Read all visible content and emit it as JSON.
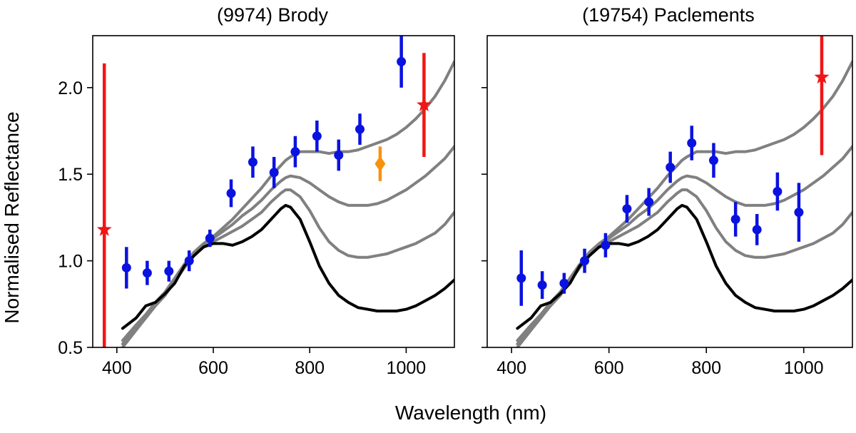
{
  "figure": {
    "xlabel": "Wavelength (nm)",
    "ylabel": "Normalised Reflectance"
  },
  "colors": {
    "blue": "#0a12e0",
    "red": "#f01616",
    "orange": "#f7920e",
    "black_model": "#000000",
    "grey_model": "#808080"
  },
  "chart_data": [
    {
      "type": "scatter",
      "title": "(9974) Brody",
      "xlabel": "Wavelength (nm)",
      "ylabel": "Normalised Reflectance",
      "xlim": [
        350,
        1100
      ],
      "ylim": [
        0.5,
        2.3
      ],
      "xticks": [
        400,
        600,
        800,
        1000
      ],
      "yticks": [
        0.5,
        1.0,
        1.5,
        2.0
      ],
      "grid": false,
      "series": [
        {
          "marker": "circle",
          "color": "blue",
          "points": [
            {
              "x": 420,
              "y": 0.96,
              "err": 0.12
            },
            {
              "x": 463,
              "y": 0.93,
              "err": 0.07
            },
            {
              "x": 508,
              "y": 0.94,
              "err": 0.06
            },
            {
              "x": 550,
              "y": 1.0,
              "err": 0.06
            },
            {
              "x": 593,
              "y": 1.13,
              "err": 0.05
            },
            {
              "x": 637,
              "y": 1.39,
              "err": 0.08
            },
            {
              "x": 682,
              "y": 1.57,
              "err": 0.09
            },
            {
              "x": 726,
              "y": 1.51,
              "err": 0.09
            },
            {
              "x": 770,
              "y": 1.63,
              "err": 0.09
            },
            {
              "x": 815,
              "y": 1.72,
              "err": 0.09
            },
            {
              "x": 860,
              "y": 1.61,
              "err": 0.09
            },
            {
              "x": 904,
              "y": 1.76,
              "err": 0.09
            },
            {
              "x": 990,
              "y": 2.15,
              "err": 0.15
            }
          ]
        },
        {
          "marker": "star",
          "color": "red",
          "points": [
            {
              "x": 374,
              "y": 1.18,
              "err_low": 0.78,
              "err_high": 0.96
            },
            {
              "x": 1037,
              "y": 1.9,
              "err": 0.3
            }
          ]
        },
        {
          "marker": "diamond",
          "color": "orange",
          "points": [
            {
              "x": 946,
              "y": 1.56,
              "err": 0.1
            }
          ]
        }
      ],
      "model_curves": [
        {
          "color": "black_model",
          "x": [
            412,
            440,
            460,
            480,
            500,
            520,
            540,
            560,
            580,
            600,
            620,
            640,
            660,
            680,
            700,
            720,
            740,
            750,
            760,
            780,
            800,
            820,
            840,
            860,
            880,
            900,
            920,
            940,
            960,
            980,
            1000,
            1020,
            1040,
            1060,
            1080,
            1100
          ],
          "y": [
            0.61,
            0.67,
            0.74,
            0.76,
            0.81,
            0.87,
            0.97,
            1.03,
            1.08,
            1.1,
            1.1,
            1.09,
            1.11,
            1.14,
            1.18,
            1.24,
            1.3,
            1.32,
            1.31,
            1.24,
            1.11,
            0.97,
            0.87,
            0.8,
            0.76,
            0.73,
            0.72,
            0.71,
            0.71,
            0.71,
            0.72,
            0.74,
            0.77,
            0.8,
            0.84,
            0.89
          ]
        },
        {
          "color": "grey_model",
          "x": [
            412,
            440,
            460,
            480,
            500,
            520,
            540,
            560,
            580,
            600,
            620,
            640,
            660,
            680,
            700,
            720,
            740,
            750,
            760,
            780,
            800,
            820,
            840,
            860,
            880,
            900,
            920,
            940,
            960,
            980,
            1000,
            1020,
            1040,
            1060,
            1080,
            1100
          ],
          "y": [
            0.5,
            0.6,
            0.67,
            0.74,
            0.8,
            0.88,
            0.96,
            1.03,
            1.08,
            1.11,
            1.14,
            1.17,
            1.2,
            1.24,
            1.28,
            1.34,
            1.39,
            1.41,
            1.41,
            1.37,
            1.29,
            1.19,
            1.11,
            1.06,
            1.03,
            1.02,
            1.02,
            1.03,
            1.04,
            1.06,
            1.08,
            1.1,
            1.13,
            1.16,
            1.21,
            1.28
          ]
        },
        {
          "color": "grey_model",
          "x": [
            412,
            440,
            460,
            480,
            500,
            520,
            540,
            560,
            580,
            600,
            620,
            640,
            660,
            680,
            700,
            720,
            740,
            750,
            760,
            780,
            800,
            820,
            840,
            860,
            880,
            900,
            920,
            940,
            960,
            980,
            1000,
            1020,
            1040,
            1060,
            1080,
            1100
          ],
          "y": [
            0.52,
            0.61,
            0.68,
            0.75,
            0.81,
            0.89,
            0.97,
            1.04,
            1.09,
            1.13,
            1.17,
            1.21,
            1.26,
            1.3,
            1.35,
            1.41,
            1.46,
            1.48,
            1.49,
            1.48,
            1.45,
            1.41,
            1.37,
            1.34,
            1.32,
            1.32,
            1.32,
            1.33,
            1.35,
            1.38,
            1.41,
            1.45,
            1.49,
            1.54,
            1.59,
            1.66
          ]
        },
        {
          "color": "grey_model",
          "x": [
            412,
            440,
            460,
            480,
            500,
            520,
            540,
            560,
            580,
            600,
            620,
            640,
            660,
            680,
            700,
            720,
            740,
            750,
            760,
            780,
            800,
            820,
            840,
            860,
            880,
            900,
            920,
            940,
            960,
            980,
            1000,
            1020,
            1040,
            1060,
            1080,
            1100
          ],
          "y": [
            0.54,
            0.63,
            0.69,
            0.76,
            0.82,
            0.9,
            0.98,
            1.05,
            1.1,
            1.14,
            1.19,
            1.24,
            1.3,
            1.36,
            1.42,
            1.49,
            1.55,
            1.58,
            1.6,
            1.63,
            1.63,
            1.63,
            1.62,
            1.63,
            1.63,
            1.64,
            1.66,
            1.68,
            1.7,
            1.73,
            1.77,
            1.82,
            1.88,
            1.95,
            2.04,
            2.15
          ]
        }
      ]
    },
    {
      "type": "scatter",
      "title": "(19754) Paclements",
      "xlabel": "Wavelength (nm)",
      "ylabel": "Normalised Reflectance",
      "xlim": [
        350,
        1100
      ],
      "ylim": [
        0.5,
        2.3
      ],
      "xticks": [
        400,
        600,
        800,
        1000
      ],
      "yticks": [
        0.5,
        1.0,
        1.5,
        2.0
      ],
      "grid": false,
      "series": [
        {
          "marker": "circle",
          "color": "blue",
          "points": [
            {
              "x": 420,
              "y": 0.9,
              "err": 0.16
            },
            {
              "x": 463,
              "y": 0.86,
              "err": 0.08
            },
            {
              "x": 508,
              "y": 0.87,
              "err": 0.06
            },
            {
              "x": 550,
              "y": 1.0,
              "err": 0.07
            },
            {
              "x": 593,
              "y": 1.09,
              "err": 0.07
            },
            {
              "x": 637,
              "y": 1.3,
              "err": 0.08
            },
            {
              "x": 682,
              "y": 1.34,
              "err": 0.08
            },
            {
              "x": 726,
              "y": 1.54,
              "err": 0.09
            },
            {
              "x": 770,
              "y": 1.68,
              "err": 0.1
            },
            {
              "x": 815,
              "y": 1.58,
              "err": 0.1
            },
            {
              "x": 860,
              "y": 1.24,
              "err": 0.1
            },
            {
              "x": 904,
              "y": 1.18,
              "err": 0.09
            },
            {
              "x": 946,
              "y": 1.4,
              "err": 0.11
            },
            {
              "x": 990,
              "y": 1.28,
              "err": 0.17
            }
          ]
        },
        {
          "marker": "star",
          "color": "red",
          "points": [
            {
              "x": 1037,
              "y": 2.06,
              "err_low": 0.45,
              "err_high": 0.3
            }
          ]
        }
      ],
      "model_curves": [
        {
          "color": "black_model",
          "x": [
            412,
            440,
            460,
            480,
            500,
            520,
            540,
            560,
            580,
            600,
            620,
            640,
            660,
            680,
            700,
            720,
            740,
            750,
            760,
            780,
            800,
            820,
            840,
            860,
            880,
            900,
            920,
            940,
            960,
            980,
            1000,
            1020,
            1040,
            1060,
            1080,
            1100
          ],
          "y": [
            0.61,
            0.67,
            0.74,
            0.76,
            0.81,
            0.87,
            0.97,
            1.03,
            1.08,
            1.1,
            1.1,
            1.09,
            1.11,
            1.14,
            1.18,
            1.24,
            1.3,
            1.32,
            1.31,
            1.24,
            1.11,
            0.97,
            0.87,
            0.8,
            0.76,
            0.73,
            0.72,
            0.71,
            0.71,
            0.71,
            0.72,
            0.74,
            0.77,
            0.8,
            0.84,
            0.89
          ]
        },
        {
          "color": "grey_model",
          "x": [
            412,
            440,
            460,
            480,
            500,
            520,
            540,
            560,
            580,
            600,
            620,
            640,
            660,
            680,
            700,
            720,
            740,
            750,
            760,
            780,
            800,
            820,
            840,
            860,
            880,
            900,
            920,
            940,
            960,
            980,
            1000,
            1020,
            1040,
            1060,
            1080,
            1100
          ],
          "y": [
            0.5,
            0.6,
            0.67,
            0.74,
            0.8,
            0.88,
            0.96,
            1.03,
            1.08,
            1.11,
            1.14,
            1.17,
            1.2,
            1.24,
            1.28,
            1.34,
            1.39,
            1.41,
            1.41,
            1.37,
            1.29,
            1.19,
            1.11,
            1.06,
            1.03,
            1.02,
            1.02,
            1.03,
            1.04,
            1.06,
            1.08,
            1.1,
            1.13,
            1.16,
            1.21,
            1.28
          ]
        },
        {
          "color": "grey_model",
          "x": [
            412,
            440,
            460,
            480,
            500,
            520,
            540,
            560,
            580,
            600,
            620,
            640,
            660,
            680,
            700,
            720,
            740,
            750,
            760,
            780,
            800,
            820,
            840,
            860,
            880,
            900,
            920,
            940,
            960,
            980,
            1000,
            1020,
            1040,
            1060,
            1080,
            1100
          ],
          "y": [
            0.52,
            0.61,
            0.68,
            0.75,
            0.81,
            0.89,
            0.97,
            1.04,
            1.09,
            1.13,
            1.17,
            1.21,
            1.26,
            1.3,
            1.35,
            1.41,
            1.46,
            1.48,
            1.49,
            1.48,
            1.45,
            1.41,
            1.37,
            1.34,
            1.32,
            1.32,
            1.32,
            1.33,
            1.35,
            1.38,
            1.41,
            1.45,
            1.49,
            1.54,
            1.59,
            1.66
          ]
        },
        {
          "color": "grey_model",
          "x": [
            412,
            440,
            460,
            480,
            500,
            520,
            540,
            560,
            580,
            600,
            620,
            640,
            660,
            680,
            700,
            720,
            740,
            750,
            760,
            780,
            800,
            820,
            840,
            860,
            880,
            900,
            920,
            940,
            960,
            980,
            1000,
            1020,
            1040,
            1060,
            1080,
            1100
          ],
          "y": [
            0.54,
            0.63,
            0.69,
            0.76,
            0.82,
            0.9,
            0.98,
            1.05,
            1.1,
            1.14,
            1.19,
            1.24,
            1.3,
            1.36,
            1.42,
            1.49,
            1.55,
            1.58,
            1.6,
            1.63,
            1.63,
            1.63,
            1.62,
            1.63,
            1.63,
            1.64,
            1.66,
            1.68,
            1.7,
            1.73,
            1.77,
            1.82,
            1.88,
            1.95,
            2.04,
            2.15
          ]
        }
      ]
    }
  ]
}
